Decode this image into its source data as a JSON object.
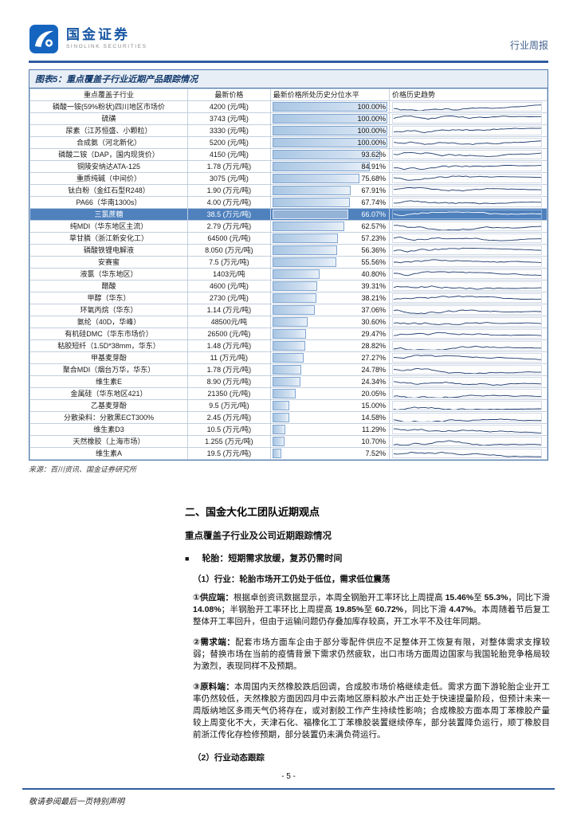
{
  "header": {
    "brand_name": "国金证券",
    "brand_sub": "SINOLINK SECURITIES",
    "doc_type": "行业周报"
  },
  "figure": {
    "title": "图表5：重点覆盖子行业近期产品跟踪情况",
    "columns": [
      "重点覆盖子行业",
      "最新价格",
      "最新价格所处历史分位水平",
      "价格历史趋势"
    ],
    "rows": [
      {
        "name": "磷酸一铵(59%粉状)四川地区市场价",
        "price": "4200 (元/吨)",
        "pct": 100.0,
        "pct_label": "100.00%",
        "highlight": false
      },
      {
        "name": "硫磺",
        "price": "3743 (元/吨)",
        "pct": 100.0,
        "pct_label": "100.00%",
        "highlight": false
      },
      {
        "name": "尿素（江苏恒盛、小颗粒）",
        "price": "3330 (元/吨)",
        "pct": 100.0,
        "pct_label": "100.00%",
        "highlight": false
      },
      {
        "name": "合成氨（河北新化）",
        "price": "5200 (元/吨)",
        "pct": 100.0,
        "pct_label": "100.00%",
        "highlight": false
      },
      {
        "name": "磷酸二铵（DAP，国内现货价）",
        "price": "4150 (元/吨)",
        "pct": 93.62,
        "pct_label": "93.62%",
        "highlight": false
      },
      {
        "name": "铜陵安纳达ATA-125",
        "price": "1.78 (万元/吨)",
        "pct": 84.91,
        "pct_label": "84.91%",
        "highlight": false
      },
      {
        "name": "重质纯碱（中间价）",
        "price": "3075 (元/吨)",
        "pct": 75.68,
        "pct_label": "75.68%",
        "highlight": false
      },
      {
        "name": "钛白粉（金红石型R248）",
        "price": "1.90 (万元/吨)",
        "pct": 67.91,
        "pct_label": "67.91%",
        "highlight": false
      },
      {
        "name": "PA66（华南1300s）",
        "price": "4.00 (万元/吨)",
        "pct": 67.74,
        "pct_label": "67.74%",
        "highlight": false
      },
      {
        "name": "三氯蔗糖",
        "price": "38.5 (万元/吨)",
        "pct": 66.07,
        "pct_label": "66.07%",
        "highlight": true
      },
      {
        "name": "纯MDI（华东地区主流）",
        "price": "2.79 (万元/吨)",
        "pct": 62.57,
        "pct_label": "62.57%",
        "highlight": false
      },
      {
        "name": "草甘膦（浙江新安化工）",
        "price": "64500 (元/吨)",
        "pct": 57.23,
        "pct_label": "57.23%",
        "highlight": false
      },
      {
        "name": "磷酸铁锂电解液",
        "price": "8.050 (万元/吨)",
        "pct": 56.36,
        "pct_label": "56.36%",
        "highlight": false
      },
      {
        "name": "安赛蜜",
        "price": "7.5 (万元/吨)",
        "pct": 55.56,
        "pct_label": "55.56%",
        "highlight": false
      },
      {
        "name": "液氯（华东地区）",
        "price": "1403元/吨",
        "pct": 40.8,
        "pct_label": "40.80%",
        "highlight": false
      },
      {
        "name": "醋酸",
        "price": "4600 (元/吨)",
        "pct": 39.31,
        "pct_label": "39.31%",
        "highlight": false
      },
      {
        "name": "甲醇（华东）",
        "price": "2730 (元/吨)",
        "pct": 38.21,
        "pct_label": "38.21%",
        "highlight": false
      },
      {
        "name": "环氧丙烷（华东）",
        "price": "1.14 (万元/吨)",
        "pct": 37.06,
        "pct_label": "37.06%",
        "highlight": false
      },
      {
        "name": "氨纶（40D，华峰）",
        "price": "48500元/吨",
        "pct": 30.6,
        "pct_label": "30.60%",
        "highlight": false
      },
      {
        "name": "有机硅DMC（华东市场价）",
        "price": "26500 (元/吨)",
        "pct": 29.47,
        "pct_label": "29.47%",
        "highlight": false
      },
      {
        "name": "粘胶短纤（1.5D*38mm，华东）",
        "price": "1.48 (万元/吨)",
        "pct": 28.82,
        "pct_label": "28.82%",
        "highlight": false
      },
      {
        "name": "甲基麦芽酚",
        "price": "11 (万元/吨)",
        "pct": 27.27,
        "pct_label": "27.27%",
        "highlight": false
      },
      {
        "name": "聚合MDI（烟台万华，华东）",
        "price": "1.78 (万元/吨)",
        "pct": 24.78,
        "pct_label": "24.78%",
        "highlight": false
      },
      {
        "name": "维生素E",
        "price": "8.90 (万元/吨)",
        "pct": 24.34,
        "pct_label": "24.34%",
        "highlight": false
      },
      {
        "name": "金属硅（华东地区421）",
        "price": "21350 (元/吨)",
        "pct": 20.05,
        "pct_label": "20.05%",
        "highlight": false
      },
      {
        "name": "乙基麦芽酚",
        "price": "9.5 (万元/吨)",
        "pct": 15.0,
        "pct_label": "15.00%",
        "highlight": false
      },
      {
        "name": "分散染料：分散黑ECT300%",
        "price": "2.45 (万元/吨)",
        "pct": 14.58,
        "pct_label": "14.58%",
        "highlight": false
      },
      {
        "name": "维生素D3",
        "price": "10.5 (万元/吨)",
        "pct": 11.29,
        "pct_label": "11.29%",
        "highlight": false
      },
      {
        "name": "天然橡胶（上海市场）",
        "price": "1.255 (万元/吨)",
        "pct": 10.7,
        "pct_label": "10.70%",
        "highlight": false
      },
      {
        "name": "维生素A",
        "price": "19.5 (万元/吨)",
        "pct": 7.52,
        "pct_label": "7.52%",
        "highlight": false
      }
    ],
    "source": "来源：百川资讯、国金证券研究所"
  },
  "body": {
    "section_title": "二、国金大化工团队近期观点",
    "subsection_title": "重点覆盖子行业及公司近期跟踪情况",
    "bullet_icon": "■",
    "bullet_item": "轮胎：短期需求放缓，复苏仍需时间",
    "topic1_title": "（1）行业：轮胎市场开工仍处于低位，需求低位震荡",
    "paragraphs": [
      {
        "segments": [
          {
            "t": "①供应端：",
            "b": true
          },
          {
            "t": "根据卓创资讯数据显示，本周全钢胎开工率环比上周提高 ",
            "b": false
          },
          {
            "t": "15.46%",
            "b": true
          },
          {
            "t": "至 ",
            "b": false
          },
          {
            "t": "55.3%",
            "b": true
          },
          {
            "t": "，同比下滑 ",
            "b": false
          },
          {
            "t": "14.08%",
            "b": true
          },
          {
            "t": "；半钢胎开工率环比上周提高 ",
            "b": false
          },
          {
            "t": "19.85%",
            "b": true
          },
          {
            "t": "至 ",
            "b": false
          },
          {
            "t": "60.72%",
            "b": true
          },
          {
            "t": "，同比下滑 ",
            "b": false
          },
          {
            "t": "4.47%",
            "b": true
          },
          {
            "t": "。本周随着节后复工整体开工率回升，但由于运输问题仍存叠加库存较高，开工水平不及往年同期。",
            "b": false
          }
        ]
      },
      {
        "segments": [
          {
            "t": "②需求端：",
            "b": true
          },
          {
            "t": "配套市场方面车企由于部分零配件供应不足整体开工恢复有限，对整体需求支撑较弱；替换市场在当前的疫情背景下需求仍然疲软，出口市场方面周边国家与我国轮胎竞争格局较为激烈，表现同样不及预期。",
            "b": false
          }
        ]
      },
      {
        "segments": [
          {
            "t": "③原料端：",
            "b": true
          },
          {
            "t": "本周国内天然橡胶跌后回调，合成胶市场价格继续走低。需求方面下游轮胎企业开工率仍然较低，天然橡胶方面因四月中云南地区原料胶水产出正处于快速提量阶段，但预计未来一周版纳地区多雨天气仍将存在，或对割胶工作产生持续性影响；合成橡胶方面本周丁苯橡胶产量较上周变化不大，天津石化、福橡化工丁苯橡胶装置继续停车，部分装置降负运行，顺丁橡胶目前浙江传化存检修预期，部分装置仍未满负荷运行。",
            "b": false
          }
        ]
      }
    ],
    "topic2_title": "（2）行业动态跟踪"
  },
  "footer": {
    "page_number": "- 5 -",
    "disclaimer": "敬请参阅最后一页特别声明"
  }
}
